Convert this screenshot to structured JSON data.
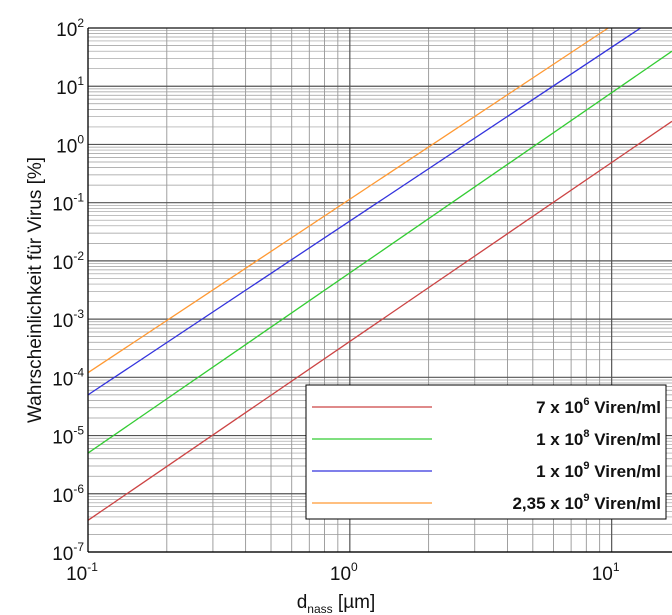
{
  "chart_data": {
    "type": "line",
    "title": "",
    "xlabel": {
      "main": "d",
      "sub": "nass",
      "unit": " [µm]"
    },
    "ylabel": "Wahrscheinlichkeit für Virus [%]",
    "xscale": "log",
    "yscale": "log",
    "xlim": [
      0.1,
      17
    ],
    "ylim": [
      1e-07,
      100
    ],
    "grid": true,
    "legend_position": "bottom-right",
    "x_ticks": [
      {
        "value": 0.1,
        "base": "10",
        "exp": "-1"
      },
      {
        "value": 1,
        "base": "10",
        "exp": "0"
      },
      {
        "value": 10,
        "base": "10",
        "exp": "1"
      }
    ],
    "y_ticks": [
      {
        "value": 1e-07,
        "base": "10",
        "exp": "-7"
      },
      {
        "value": 1e-06,
        "base": "10",
        "exp": "-6"
      },
      {
        "value": 1e-05,
        "base": "10",
        "exp": "-5"
      },
      {
        "value": 0.0001,
        "base": "10",
        "exp": "-4"
      },
      {
        "value": 0.001,
        "base": "10",
        "exp": "-3"
      },
      {
        "value": 0.01,
        "base": "10",
        "exp": "-2"
      },
      {
        "value": 0.1,
        "base": "10",
        "exp": "-1"
      },
      {
        "value": 1,
        "base": "10",
        "exp": "0"
      },
      {
        "value": 10,
        "base": "10",
        "exp": "1"
      },
      {
        "value": 100,
        "base": "10",
        "exp": "2"
      }
    ],
    "series": [
      {
        "legend": {
          "pre": "7 x 10",
          "exp": "6",
          "post": " Viren/ml"
        },
        "color": "#cc4444",
        "points": [
          [
            0.1,
            3.5e-07
          ],
          [
            17,
            2.5
          ]
        ]
      },
      {
        "legend": {
          "pre": "1 x 10",
          "exp": "8",
          "post": " Viren/ml"
        },
        "color": "#33cc33",
        "points": [
          [
            0.1,
            5e-06
          ],
          [
            17,
            40
          ]
        ]
      },
      {
        "legend": {
          "pre": "1 x 10",
          "exp": "9",
          "post": " Viren/ml"
        },
        "color": "#3333dd",
        "points": [
          [
            0.1,
            5e-05
          ],
          [
            12.9,
            100
          ]
        ]
      },
      {
        "legend": {
          "pre": "2,35 x 10",
          "exp": "9",
          "post": " Viren/ml"
        },
        "color": "#ff9933",
        "points": [
          [
            0.1,
            0.00012
          ],
          [
            9.7,
            100
          ]
        ]
      }
    ]
  }
}
